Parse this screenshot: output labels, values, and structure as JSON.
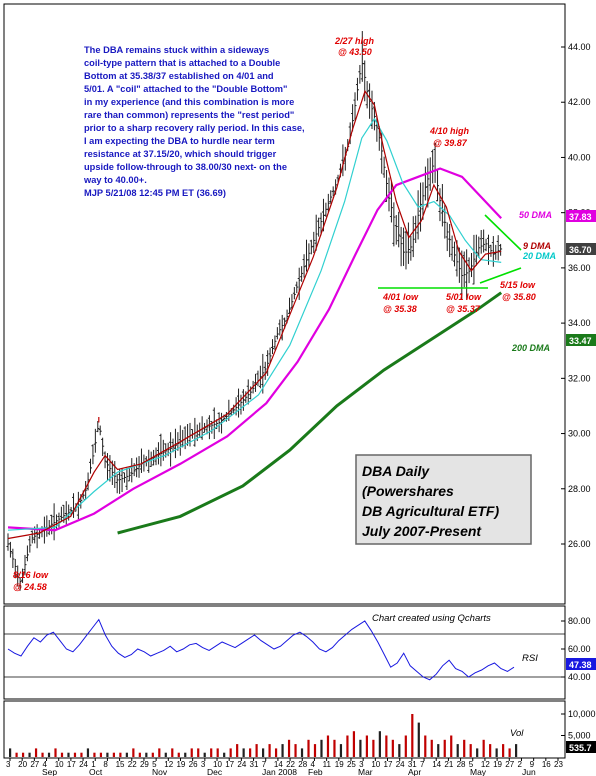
{
  "chart_data": {
    "type": "line",
    "panels": {
      "price": {
        "ylim": [
          24.0,
          45.5
        ],
        "y_ticks": [
          "26.00",
          "28.00",
          "30.00",
          "32.00",
          "34.00",
          "36.00",
          "38.00",
          "40.00",
          "42.00",
          "44.00"
        ],
        "axis_badges": [
          {
            "label": "37.83",
            "value": 37.83,
            "color": "#e000e0"
          },
          {
            "label": "36.70",
            "value": 36.7,
            "color": "#404040"
          }
        ],
        "ma_labels": [
          {
            "label": "50 DMA",
            "color": "#e000e0"
          },
          {
            "label": "9 DMA",
            "color": "#b00000"
          },
          {
            "label": "20 DMA",
            "color": "#00c8c8"
          },
          {
            "label": "200 DMA",
            "color": "#1a7a1a"
          }
        ],
        "series": {
          "ohlc_close": [
            [
              0,
              26.0
            ],
            [
              8,
              24.6
            ],
            [
              15,
              26.2
            ],
            [
              25,
              26.6
            ],
            [
              35,
              27.0
            ],
            [
              45,
              27.4
            ],
            [
              50,
              28.0
            ],
            [
              55,
              29.4
            ],
            [
              58,
              30.4
            ],
            [
              62,
              29.0
            ],
            [
              70,
              28.3
            ],
            [
              78,
              28.5
            ],
            [
              85,
              28.9
            ],
            [
              95,
              29.2
            ],
            [
              105,
              29.5
            ],
            [
              115,
              29.9
            ],
            [
              125,
              30.2
            ],
            [
              135,
              30.4
            ],
            [
              145,
              30.9
            ],
            [
              155,
              31.5
            ],
            [
              165,
              32.4
            ],
            [
              172,
              33.6
            ],
            [
              178,
              34.2
            ],
            [
              185,
              35.4
            ],
            [
              192,
              36.5
            ],
            [
              198,
              37.4
            ],
            [
              205,
              38.4
            ],
            [
              212,
              39.4
            ],
            [
              218,
              40.6
            ],
            [
              222,
              42.0
            ],
            [
              226,
              43.5
            ],
            [
              230,
              42.2
            ],
            [
              234,
              41.5
            ],
            [
              238,
              40.5
            ],
            [
              243,
              38.6
            ],
            [
              248,
              37.5
            ],
            [
              253,
              36.5
            ],
            [
              258,
              36.8
            ],
            [
              263,
              38.2
            ],
            [
              268,
              39.2
            ],
            [
              272,
              39.8
            ],
            [
              276,
              38.4
            ],
            [
              280,
              37.4
            ],
            [
              285,
              36.5
            ],
            [
              290,
              35.7
            ],
            [
              295,
              35.9
            ],
            [
              300,
              36.7
            ],
            [
              305,
              36.9
            ],
            [
              310,
              36.5
            ],
            [
              315,
              36.7
            ]
          ],
          "ma9": [
            [
              0,
              26.2
            ],
            [
              20,
              26.4
            ],
            [
              40,
              27.0
            ],
            [
              55,
              28.6
            ],
            [
              62,
              29.2
            ],
            [
              70,
              28.7
            ],
            [
              85,
              28.9
            ],
            [
              110,
              29.7
            ],
            [
              140,
              30.7
            ],
            [
              165,
              32.2
            ],
            [
              180,
              34.3
            ],
            [
              195,
              36.4
            ],
            [
              210,
              38.9
            ],
            [
              220,
              41.0
            ],
            [
              228,
              42.4
            ],
            [
              234,
              41.9
            ],
            [
              240,
              40.3
            ],
            [
              248,
              38.4
            ],
            [
              256,
              37.1
            ],
            [
              264,
              37.7
            ],
            [
              272,
              39.0
            ],
            [
              280,
              38.2
            ],
            [
              288,
              36.6
            ],
            [
              296,
              35.9
            ],
            [
              305,
              36.5
            ],
            [
              315,
              36.6
            ]
          ],
          "ma20": [
            [
              0,
              26.5
            ],
            [
              30,
              26.6
            ],
            [
              55,
              27.9
            ],
            [
              70,
              28.6
            ],
            [
              100,
              29.2
            ],
            [
              130,
              30.1
            ],
            [
              160,
              31.4
            ],
            [
              180,
              33.2
            ],
            [
              200,
              35.9
            ],
            [
              215,
              38.4
            ],
            [
              226,
              40.7
            ],
            [
              234,
              41.4
            ],
            [
              242,
              40.6
            ],
            [
              252,
              39.1
            ],
            [
              262,
              38.2
            ],
            [
              272,
              38.4
            ],
            [
              282,
              37.9
            ],
            [
              292,
              37.0
            ],
            [
              302,
              36.3
            ],
            [
              315,
              36.2
            ]
          ],
          "ma50": [
            [
              0,
              26.6
            ],
            [
              30,
              26.5
            ],
            [
              55,
              27.1
            ],
            [
              80,
              28.0
            ],
            [
              110,
              28.9
            ],
            [
              140,
              29.9
            ],
            [
              165,
              31.1
            ],
            [
              185,
              32.6
            ],
            [
              205,
              34.5
            ],
            [
              222,
              36.5
            ],
            [
              236,
              38.1
            ],
            [
              248,
              39.0
            ],
            [
              262,
              39.3
            ],
            [
              276,
              39.6
            ],
            [
              290,
              39.3
            ],
            [
              305,
              38.4
            ],
            [
              315,
              37.8
            ]
          ],
          "ma200": [
            [
              70,
              26.4
            ],
            [
              110,
              27.0
            ],
            [
              150,
              28.1
            ],
            [
              180,
              29.4
            ],
            [
              210,
              31.0
            ],
            [
              240,
              32.3
            ],
            [
              270,
              33.4
            ],
            [
              300,
              34.5
            ],
            [
              315,
              35.1
            ]
          ]
        },
        "annotations": [
          {
            "text": "8/16 low",
            "style": "red"
          },
          {
            "text": "@ 24.58",
            "style": "red"
          },
          {
            "text": "2/27 high",
            "style": "red"
          },
          {
            "text": "@ 43.50",
            "style": "red"
          },
          {
            "text": "4/10 high",
            "style": "red"
          },
          {
            "text": "@ 39.87",
            "style": "red"
          },
          {
            "text": "4/01 low",
            "style": "red"
          },
          {
            "text": "@ 35.38",
            "style": "red"
          },
          {
            "text": "5/01 low",
            "style": "red"
          },
          {
            "text": "@ 35.37",
            "style": "red"
          },
          {
            "text": "5/15 low",
            "style": "red"
          },
          {
            "text": "@ 35.80",
            "style": "red"
          }
        ],
        "commentary": [
          "The DBA remains stuck within a sideways",
          "coil-type pattern that is attached to a Double",
          "Bottom at 35.38/37 established on 4/01 and",
          "5/01. A \"coil\" attached to the \"Double Bottom\"",
          "in my experience (and this combination is more",
          "rare than common) represents the \"rest period\"",
          "prior to a sharp recovery rally period. In this case,",
          "I am expecting the DBA to hurdle near term",
          "resistance at 37.15/20, which should trigger",
          "upside follow-through to 38.00/30 next- on the",
          "way to 40.00+.",
          "MJP  5/21/08  12:45 PM ET (36.69)"
        ],
        "title_box": [
          "DBA Daily",
          "(Powershares",
          "DB Agricultural ETF)",
          "July 2007-Present"
        ]
      },
      "rsi": {
        "label": "RSI",
        "ylim": [
          30,
          85
        ],
        "y_ticks": [
          "80.00",
          "60.00",
          "40.00"
        ],
        "badge": "47.38",
        "note": "Chart created using Qcharts",
        "values": [
          60,
          57,
          55,
          62,
          68,
          65,
          70,
          72,
          66,
          60,
          58,
          63,
          69,
          75,
          81,
          70,
          62,
          57,
          54,
          56,
          60,
          58,
          55,
          57,
          59,
          62,
          58,
          60,
          63,
          64,
          61,
          59,
          62,
          65,
          63,
          61,
          64,
          67,
          70,
          66,
          63,
          60,
          62,
          66,
          70,
          72,
          69,
          65,
          60,
          58,
          61,
          66,
          70,
          74,
          77,
          80,
          73,
          65,
          56,
          47,
          50,
          57,
          48,
          44,
          40,
          38,
          42,
          48,
          52,
          46,
          44,
          40,
          43,
          45,
          48,
          50,
          46,
          44,
          47
        ]
      },
      "volume": {
        "label": "Vol",
        "y_ticks": [
          "10,000",
          "5,000"
        ],
        "badge": "535.7",
        "values": [
          2,
          1,
          1,
          1,
          2,
          1,
          1,
          2,
          1,
          1,
          1,
          1,
          2,
          1,
          1,
          1,
          1,
          1,
          1,
          2,
          1,
          1,
          1,
          2,
          1,
          2,
          1,
          1,
          2,
          2,
          1,
          2,
          2,
          1,
          2,
          3,
          2,
          2,
          3,
          2,
          3,
          2,
          3,
          4,
          3,
          2,
          4,
          3,
          4,
          5,
          4,
          3,
          5,
          6,
          4,
          5,
          4,
          6,
          5,
          4,
          3,
          5,
          10,
          8,
          5,
          4,
          3,
          4,
          5,
          3,
          4,
          3,
          2,
          4,
          3,
          2,
          3,
          2,
          3
        ]
      }
    },
    "x_ticks": [
      "3",
      "20",
      "27",
      "4",
      "10",
      "17",
      "24",
      "1",
      "8",
      "15",
      "22",
      "29",
      "5",
      "12",
      "19",
      "26",
      "3",
      "10",
      "17",
      "24",
      "31",
      "7",
      "14",
      "22",
      "28",
      "4",
      "11",
      "19",
      "25",
      "3",
      "10",
      "17",
      "24",
      "31",
      "7",
      "14",
      "21",
      "28",
      "5",
      "12",
      "19",
      "27",
      "2",
      "9",
      "16",
      "23"
    ],
    "x_months": [
      "Sep",
      "Oct",
      "Nov",
      "Dec",
      "Jan 2008",
      "Feb",
      "Mar",
      "Apr",
      "May",
      "Jun"
    ]
  }
}
